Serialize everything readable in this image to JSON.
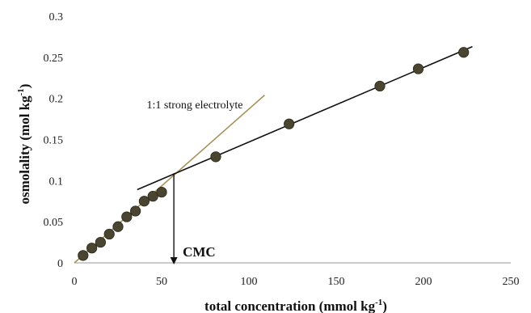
{
  "chart_data": {
    "type": "scatter",
    "xlabel_main": "total concentration (mmol kg",
    "xlabel_exp": "-1",
    "xlabel_close": ")",
    "ylabel_main": "osmolality (mol kg",
    "ylabel_exp": "-1",
    "ylabel_close": ")",
    "xlim": [
      0,
      250
    ],
    "ylim": [
      0,
      0.3
    ],
    "x_ticks": [
      0,
      50,
      100,
      150,
      200,
      250
    ],
    "x_tick_labels": [
      "0",
      "50",
      "100",
      "150",
      "200",
      "250"
    ],
    "y_ticks": [
      0,
      0.05,
      0.1,
      0.15,
      0.2,
      0.25,
      0.3
    ],
    "y_tick_labels": [
      "0",
      "0.05",
      "0.1",
      "0.15",
      "0.2",
      "0.25",
      "0.3"
    ],
    "grid": false,
    "series": [
      {
        "x": [
          5,
          10,
          15,
          20,
          25,
          30,
          35,
          40,
          45,
          50,
          81,
          123,
          175,
          197,
          223
        ],
        "y": [
          0.009,
          0.018,
          0.025,
          0.035,
          0.044,
          0.056,
          0.063,
          0.075,
          0.081,
          0.086,
          0.129,
          0.169,
          0.215,
          0.236,
          0.256
        ],
        "color": "#4a4530"
      }
    ],
    "fit_lines": [
      {
        "x": [
          0,
          109
        ],
        "y": [
          0,
          0.204
        ],
        "color": "#a8925a"
      },
      {
        "x": [
          36,
          228
        ],
        "y": [
          0.089,
          0.263
        ],
        "color": "#111111"
      }
    ],
    "annotations": [
      {
        "text": "1:1 strong electrolyte",
        "x": 69,
        "y": 0.188
      }
    ],
    "cmc": {
      "label": "CMC",
      "x": 57,
      "y_top": 0.109
    }
  }
}
